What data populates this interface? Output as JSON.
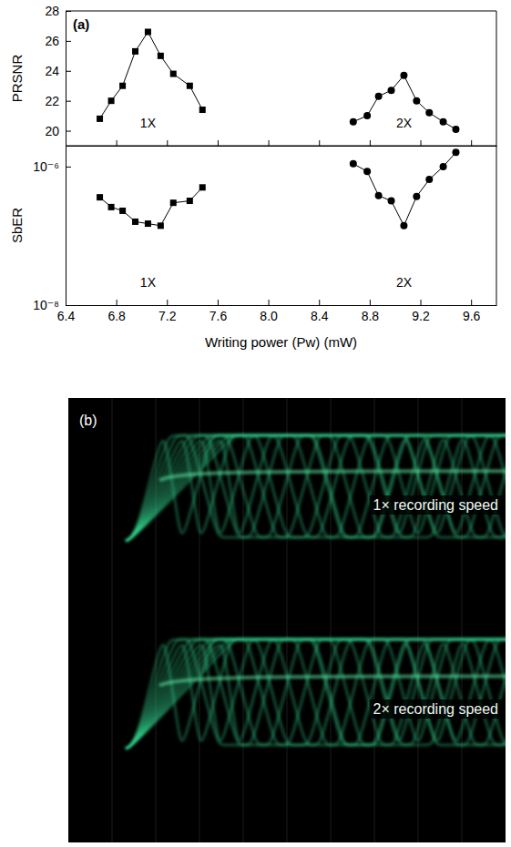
{
  "chart_data": [
    {
      "type": "line",
      "title": "(a)",
      "ylabel": "PRSNR",
      "xlim": [
        6.4,
        9.8
      ],
      "xticks": [
        6.4,
        6.8,
        7.2,
        7.6,
        {
          "value": 8,
          "label": "8.0"
        },
        8.4,
        8.8,
        9.2,
        9.6
      ],
      "ylim": [
        19,
        28
      ],
      "yticks": [
        20,
        22,
        24,
        26,
        28
      ],
      "tick_labels": "y",
      "series": [
        {
          "name": "1X",
          "color": "#000000",
          "marker": "square",
          "x": [
            6.67,
            6.76,
            6.85,
            6.95,
            7.05,
            7.15,
            7.25,
            7.38,
            7.48
          ],
          "values": [
            20.8,
            22.0,
            23.0,
            25.3,
            26.6,
            25.0,
            23.8,
            23.0,
            21.4
          ]
        },
        {
          "name": "2X",
          "color": "#000000",
          "marker": "circle",
          "x": [
            8.67,
            8.78,
            8.87,
            8.97,
            9.07,
            9.17,
            9.27,
            9.38,
            9.48
          ],
          "values": [
            20.6,
            21.0,
            22.3,
            22.7,
            23.7,
            22.0,
            21.2,
            20.6,
            20.1
          ]
        }
      ]
    },
    {
      "type": "line",
      "ylabel": "SbER",
      "xlabel": "Writing power (Pw) (mW)",
      "log": "y",
      "xlim": [
        6.4,
        9.8
      ],
      "xticks": [
        6.4,
        6.8,
        7.2,
        7.6,
        {
          "value": 8,
          "label": "8.0"
        },
        8.4,
        8.8,
        9.2,
        9.6
      ],
      "ylim": [
        1e-08,
        2e-06
      ],
      "yticks": [
        {
          "value": 1e-08,
          "label": "10⁻⁸"
        },
        {
          "value": 1e-06,
          "label": "10⁻⁶"
        }
      ],
      "series": [
        {
          "name": "1X",
          "color": "#000000",
          "marker": "square",
          "x": [
            6.67,
            6.76,
            6.85,
            6.95,
            7.05,
            7.15,
            7.25,
            7.38,
            7.48
          ],
          "values": [
            3.6e-07,
            2.6e-07,
            2.3e-07,
            1.6e-07,
            1.5e-07,
            1.4e-07,
            3e-07,
            3.2e-07,
            5e-07
          ]
        },
        {
          "name": "2X",
          "color": "#000000",
          "marker": "circle",
          "x": [
            8.67,
            8.78,
            8.87,
            8.97,
            9.07,
            9.17,
            9.27,
            9.38,
            9.48
          ],
          "values": [
            1.1e-06,
            8.5e-07,
            3.8e-07,
            3.2e-07,
            1.4e-07,
            3.7e-07,
            6.5e-07,
            1e-06,
            1.6e-06
          ]
        }
      ]
    }
  ],
  "panel_b": {
    "label": "(b)",
    "captions": [
      "1× recording speed",
      "2× recording speed"
    ]
  }
}
